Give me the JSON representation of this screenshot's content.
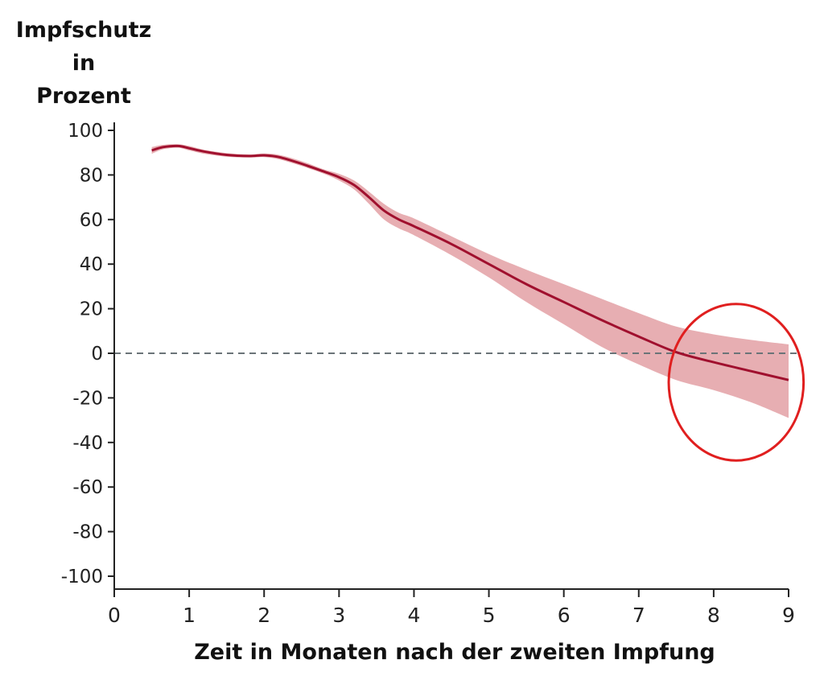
{
  "chart_data": {
    "type": "area",
    "ylabel_lines": [
      "Impfschutz",
      "in",
      "Prozent"
    ],
    "xlabel": "Zeit in Monaten nach der zweiten Impfung",
    "xlim": [
      0,
      9
    ],
    "ylim": [
      -100,
      100
    ],
    "x_ticks": [
      "0",
      "1",
      "2",
      "3",
      "4",
      "5",
      "6",
      "7",
      "8",
      "9"
    ],
    "y_ticks": [
      "100",
      "80",
      "60",
      "40",
      "20",
      "0",
      "-20",
      "-40",
      "-60",
      "-80",
      "-100"
    ],
    "reference_line": {
      "y": 0,
      "style": "dashed"
    },
    "grid": false,
    "colors": {
      "line": "#a0102e",
      "band": "#e3a0a4",
      "highlight": "#e01f1f",
      "reference": "#6b7478",
      "axis": "#222222"
    },
    "series": [
      {
        "x": [
          0.5,
          0.65,
          0.85,
          1.0,
          1.2,
          1.5,
          1.8,
          2.0,
          2.2,
          2.5,
          2.8,
          3.0,
          3.2,
          3.4,
          3.6,
          3.8,
          4.0,
          4.5,
          5.0,
          5.5,
          6.0,
          6.5,
          7.0,
          7.5,
          8.0,
          8.5,
          9.0
        ],
        "y": [
          91,
          92.5,
          93,
          92,
          90.5,
          89,
          88.5,
          88.8,
          88,
          85,
          81.5,
          79,
          75.5,
          70,
          64,
          60,
          57,
          49,
          40,
          31,
          23,
          15,
          7.5,
          0.5,
          -4,
          -8,
          -12
        ],
        "lower": [
          89.5,
          91.5,
          92.2,
          91,
          89.5,
          88.2,
          87.8,
          88,
          87,
          84,
          80.5,
          77.5,
          73.5,
          67,
          60,
          56,
          53,
          44,
          34,
          23,
          13,
          3,
          -5,
          -12,
          -16.5,
          -22,
          -29
        ],
        "upper": [
          92.5,
          93.5,
          93.8,
          93,
          91.3,
          89.8,
          89.2,
          89.6,
          89,
          86.2,
          82.5,
          80.5,
          77.5,
          72.5,
          67,
          63,
          60.5,
          52.5,
          44.5,
          37.5,
          31,
          24.5,
          18,
          12,
          8.5,
          6,
          4
        ]
      }
    ],
    "annotation": {
      "shape": "ellipse",
      "center": [
        8.3,
        -13
      ],
      "rx": 0.9,
      "ry": 13,
      "color": "#e01f1f"
    }
  }
}
